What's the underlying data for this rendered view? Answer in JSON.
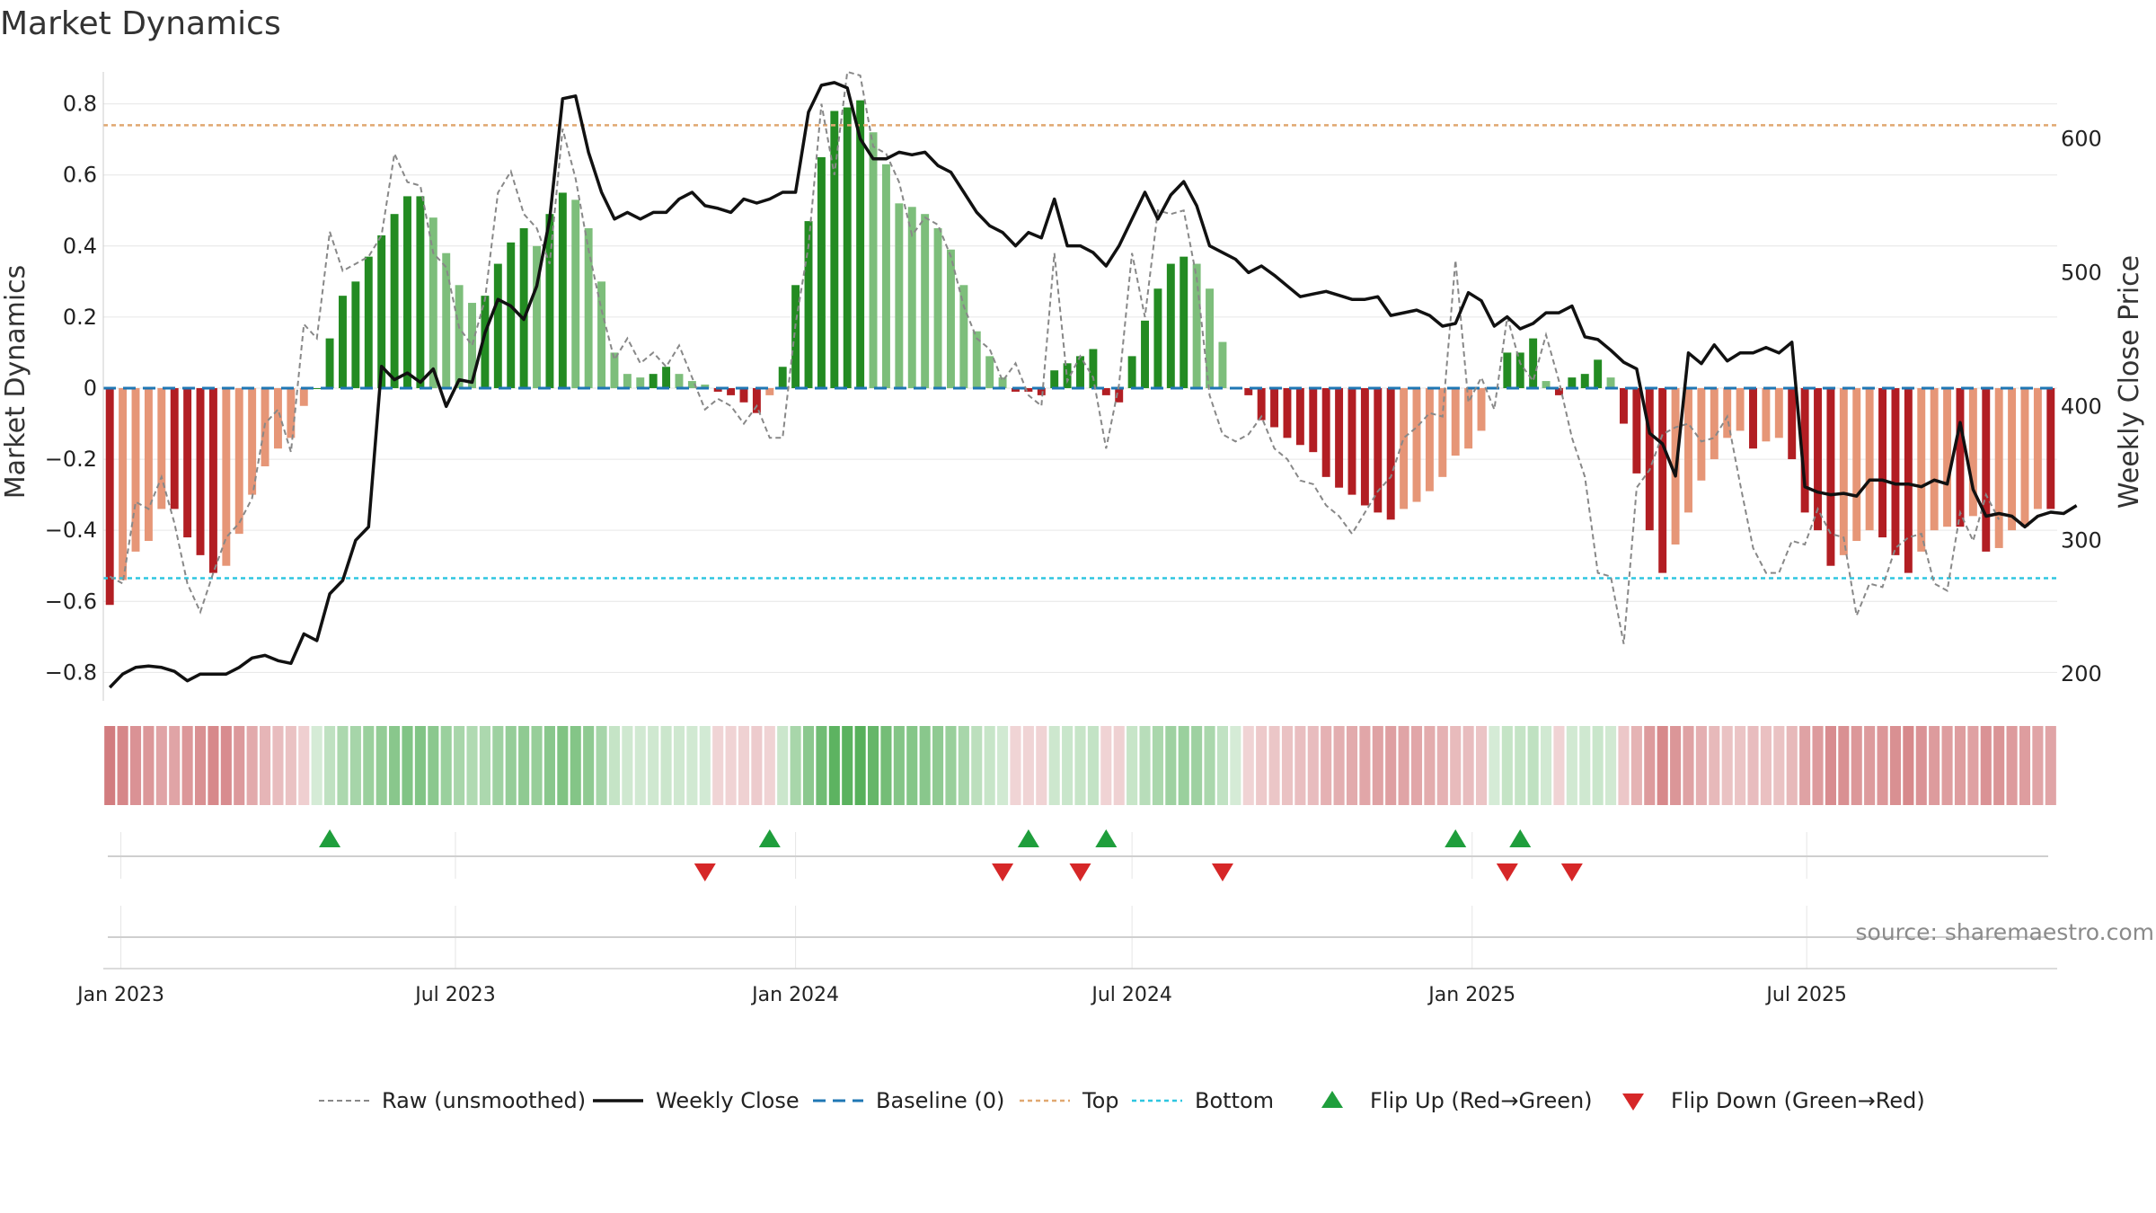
{
  "chart_data": {
    "type": "bar",
    "title": "Market Dynamics",
    "ylabel_left": "Market Dynamics",
    "ylabel_right": "Weekly Close Price",
    "ylim_left": [
      -0.88,
      0.89
    ],
    "ylim_right": [
      180,
      650
    ],
    "yticks_left": [
      {
        "value": 0.8,
        "label": "0.8"
      },
      {
        "value": 0.6,
        "label": "0.6"
      },
      {
        "value": 0.4,
        "label": "0.4"
      },
      {
        "value": 0.2,
        "label": "0.2"
      },
      {
        "value": 0,
        "label": "0"
      },
      {
        "value": -0.2,
        "label": "−0.2"
      },
      {
        "value": -0.4,
        "label": "−0.4"
      },
      {
        "value": -0.6,
        "label": "−0.6"
      },
      {
        "value": -0.8,
        "label": "−0.8"
      }
    ],
    "yticks_right": [
      {
        "value": 600,
        "label": "600"
      },
      {
        "value": 500,
        "label": "500"
      },
      {
        "value": 400,
        "label": "400"
      },
      {
        "value": 300,
        "label": "300"
      },
      {
        "value": 200,
        "label": "200"
      }
    ],
    "x_start": "2022-12-26",
    "x_end": "2025-10-06",
    "x_step_days": 7,
    "xticks": [
      {
        "date": "2023-01-01",
        "label": "Jan 2023"
      },
      {
        "date": "2023-07-01",
        "label": "Jul 2023"
      },
      {
        "date": "2024-01-01",
        "label": "Jan 2024"
      },
      {
        "date": "2024-07-01",
        "label": "Jul 2024"
      },
      {
        "date": "2025-01-01",
        "label": "Jan 2025"
      },
      {
        "date": "2025-07-01",
        "label": "Jul 2025"
      }
    ],
    "top_level": 0.74,
    "bottom_level": -0.535,
    "baseline": 0,
    "smoothed": [
      -0.61,
      -0.54,
      -0.46,
      -0.43,
      -0.34,
      -0.34,
      -0.42,
      -0.47,
      -0.52,
      -0.5,
      -0.41,
      -0.3,
      -0.22,
      -0.17,
      -0.14,
      -0.05,
      0,
      0.14,
      0.26,
      0.3,
      0.37,
      0.43,
      0.49,
      0.54,
      0.54,
      0.48,
      0.38,
      0.29,
      0.24,
      0.26,
      0.35,
      0.41,
      0.45,
      0.4,
      0.49,
      0.55,
      0.53,
      0.45,
      0.3,
      0.1,
      0.04,
      0.03,
      0.04,
      0.06,
      0.04,
      0.02,
      0.01,
      -0.01,
      -0.02,
      -0.04,
      -0.07,
      -0.02,
      0.06,
      0.29,
      0.47,
      0.65,
      0.78,
      0.79,
      0.81,
      0.72,
      0.63,
      0.52,
      0.51,
      0.49,
      0.45,
      0.39,
      0.29,
      0.16,
      0.09,
      0.03,
      -0.01,
      -0.01,
      -0.02,
      0.05,
      0.07,
      0.09,
      0.11,
      -0.02,
      -0.04,
      0.09,
      0.19,
      0.28,
      0.35,
      0.37,
      0.35,
      0.28,
      0.13,
      0,
      -0.02,
      -0.09,
      -0.11,
      -0.14,
      -0.16,
      -0.18,
      -0.25,
      -0.28,
      -0.3,
      -0.33,
      -0.35,
      -0.37,
      -0.34,
      -0.32,
      -0.29,
      -0.25,
      -0.19,
      -0.17,
      -0.12,
      0,
      0.1,
      0.1,
      0.14,
      0.02,
      -0.02,
      0.03,
      0.04,
      0.08,
      0.03,
      -0.1,
      -0.24,
      -0.4,
      -0.52,
      -0.44,
      -0.35,
      -0.26,
      -0.2,
      -0.14,
      -0.12,
      -0.17,
      -0.15,
      -0.14,
      -0.2,
      -0.35,
      -0.4,
      -0.5,
      -0.47,
      -0.43,
      -0.4,
      -0.42,
      -0.47,
      -0.52,
      -0.46,
      -0.4,
      -0.39,
      -0.39,
      -0.36,
      -0.46,
      -0.45,
      -0.4,
      -0.39,
      -0.34,
      -0.34
    ],
    "raw": [
      -0.53,
      -0.55,
      -0.32,
      -0.34,
      -0.25,
      -0.38,
      -0.55,
      -0.63,
      -0.52,
      -0.42,
      -0.38,
      -0.31,
      -0.1,
      -0.06,
      -0.18,
      0.18,
      0.14,
      0.44,
      0.33,
      0.35,
      0.37,
      0.43,
      0.66,
      0.58,
      0.57,
      0.38,
      0.34,
      0.17,
      0.12,
      0.25,
      0.55,
      0.61,
      0.49,
      0.45,
      0.35,
      0.73,
      0.59,
      0.39,
      0.22,
      0.08,
      0.14,
      0.07,
      0.1,
      0.06,
      0.12,
      0.03,
      -0.06,
      -0.03,
      -0.05,
      -0.1,
      -0.05,
      -0.14,
      -0.14,
      0.18,
      0.4,
      0.8,
      0.6,
      0.9,
      0.88,
      0.68,
      0.66,
      0.58,
      0.43,
      0.48,
      0.46,
      0.37,
      0.23,
      0.14,
      0.11,
      0.02,
      0.07,
      -0.02,
      -0.05,
      0.38,
      0.02,
      0.09,
      0.03,
      -0.17,
      0.01,
      0.38,
      0.2,
      0.5,
      0.49,
      0.5,
      0.31,
      -0.02,
      -0.13,
      -0.15,
      -0.13,
      -0.08,
      -0.17,
      -0.2,
      -0.26,
      -0.27,
      -0.33,
      -0.36,
      -0.41,
      -0.35,
      -0.29,
      -0.25,
      -0.14,
      -0.11,
      -0.07,
      -0.08,
      0.36,
      -0.04,
      0.03,
      -0.06,
      0.2,
      0.07,
      0.02,
      0.15,
      0.02,
      -0.14,
      -0.25,
      -0.52,
      -0.53,
      -0.72,
      -0.28,
      -0.23,
      -0.13,
      -0.11,
      -0.1,
      -0.15,
      -0.14,
      -0.08,
      -0.27,
      -0.45,
      -0.52,
      -0.52,
      -0.43,
      -0.44,
      -0.34,
      -0.41,
      -0.42,
      -0.64,
      -0.55,
      -0.56,
      -0.45,
      -0.42,
      -0.41,
      -0.55,
      -0.57,
      -0.35,
      -0.43,
      -0.3,
      -0.37
    ],
    "close": [
      190,
      200,
      205,
      206,
      205,
      202,
      195,
      200,
      200,
      200,
      205,
      212,
      214,
      210,
      208,
      230,
      225,
      260,
      270,
      300,
      310,
      430,
      420,
      425,
      418,
      428,
      400,
      420,
      418,
      455,
      480,
      475,
      465,
      490,
      540,
      630,
      632,
      590,
      560,
      540,
      545,
      540,
      545,
      545,
      555,
      560,
      550,
      548,
      545,
      555,
      552,
      555,
      560,
      560,
      620,
      640,
      642,
      638,
      600,
      585,
      585,
      590,
      588,
      590,
      580,
      575,
      560,
      545,
      535,
      530,
      520,
      530,
      526,
      555,
      520,
      520,
      515,
      505,
      520,
      540,
      560,
      540,
      558,
      568,
      550,
      520,
      515,
      510,
      500,
      505,
      498,
      490,
      482,
      484,
      486,
      483,
      480,
      480,
      482,
      468,
      470,
      472,
      468,
      460,
      462,
      485,
      479,
      460,
      467,
      458,
      462,
      470,
      470,
      475,
      452,
      450,
      442,
      433,
      428,
      380,
      372,
      348,
      440,
      432,
      446,
      434,
      440,
      440,
      444,
      440,
      448,
      340,
      336,
      334,
      335,
      333,
      345,
      345,
      342,
      342,
      340,
      345,
      342,
      388,
      338,
      318,
      320,
      318,
      310,
      318,
      321,
      320,
      326
    ],
    "flip_up_weeks": [
      17,
      51,
      71,
      77,
      104,
      109
    ],
    "flip_down_weeks": [
      46,
      69,
      75,
      86,
      108,
      113
    ],
    "colors": {
      "strong_green": "#238b22",
      "light_green": "#7dbe7b",
      "strong_red": "#b21e23",
      "light_red": "#e69677",
      "raw_line": "#888888",
      "close_line": "#111111",
      "baseline": "#1f77b4",
      "top": "#e0a870",
      "bottom": "#2ec6e0",
      "flip_up": "#1f9e3c",
      "flip_down": "#d62728"
    },
    "legend": [
      {
        "key": "raw",
        "label": "Raw (unsmoothed)"
      },
      {
        "key": "close",
        "label": "Weekly Close"
      },
      {
        "key": "baseline",
        "label": "Baseline (0)"
      },
      {
        "key": "top",
        "label": "Top"
      },
      {
        "key": "bottom",
        "label": "Bottom"
      },
      {
        "key": "flip_up",
        "label": "Flip Up (Red→Green)"
      },
      {
        "key": "flip_down",
        "label": "Flip Down (Green→Red)"
      }
    ],
    "legend_position": "bottom-center",
    "grid": true
  },
  "source_note": "source: sharemaestro.com"
}
